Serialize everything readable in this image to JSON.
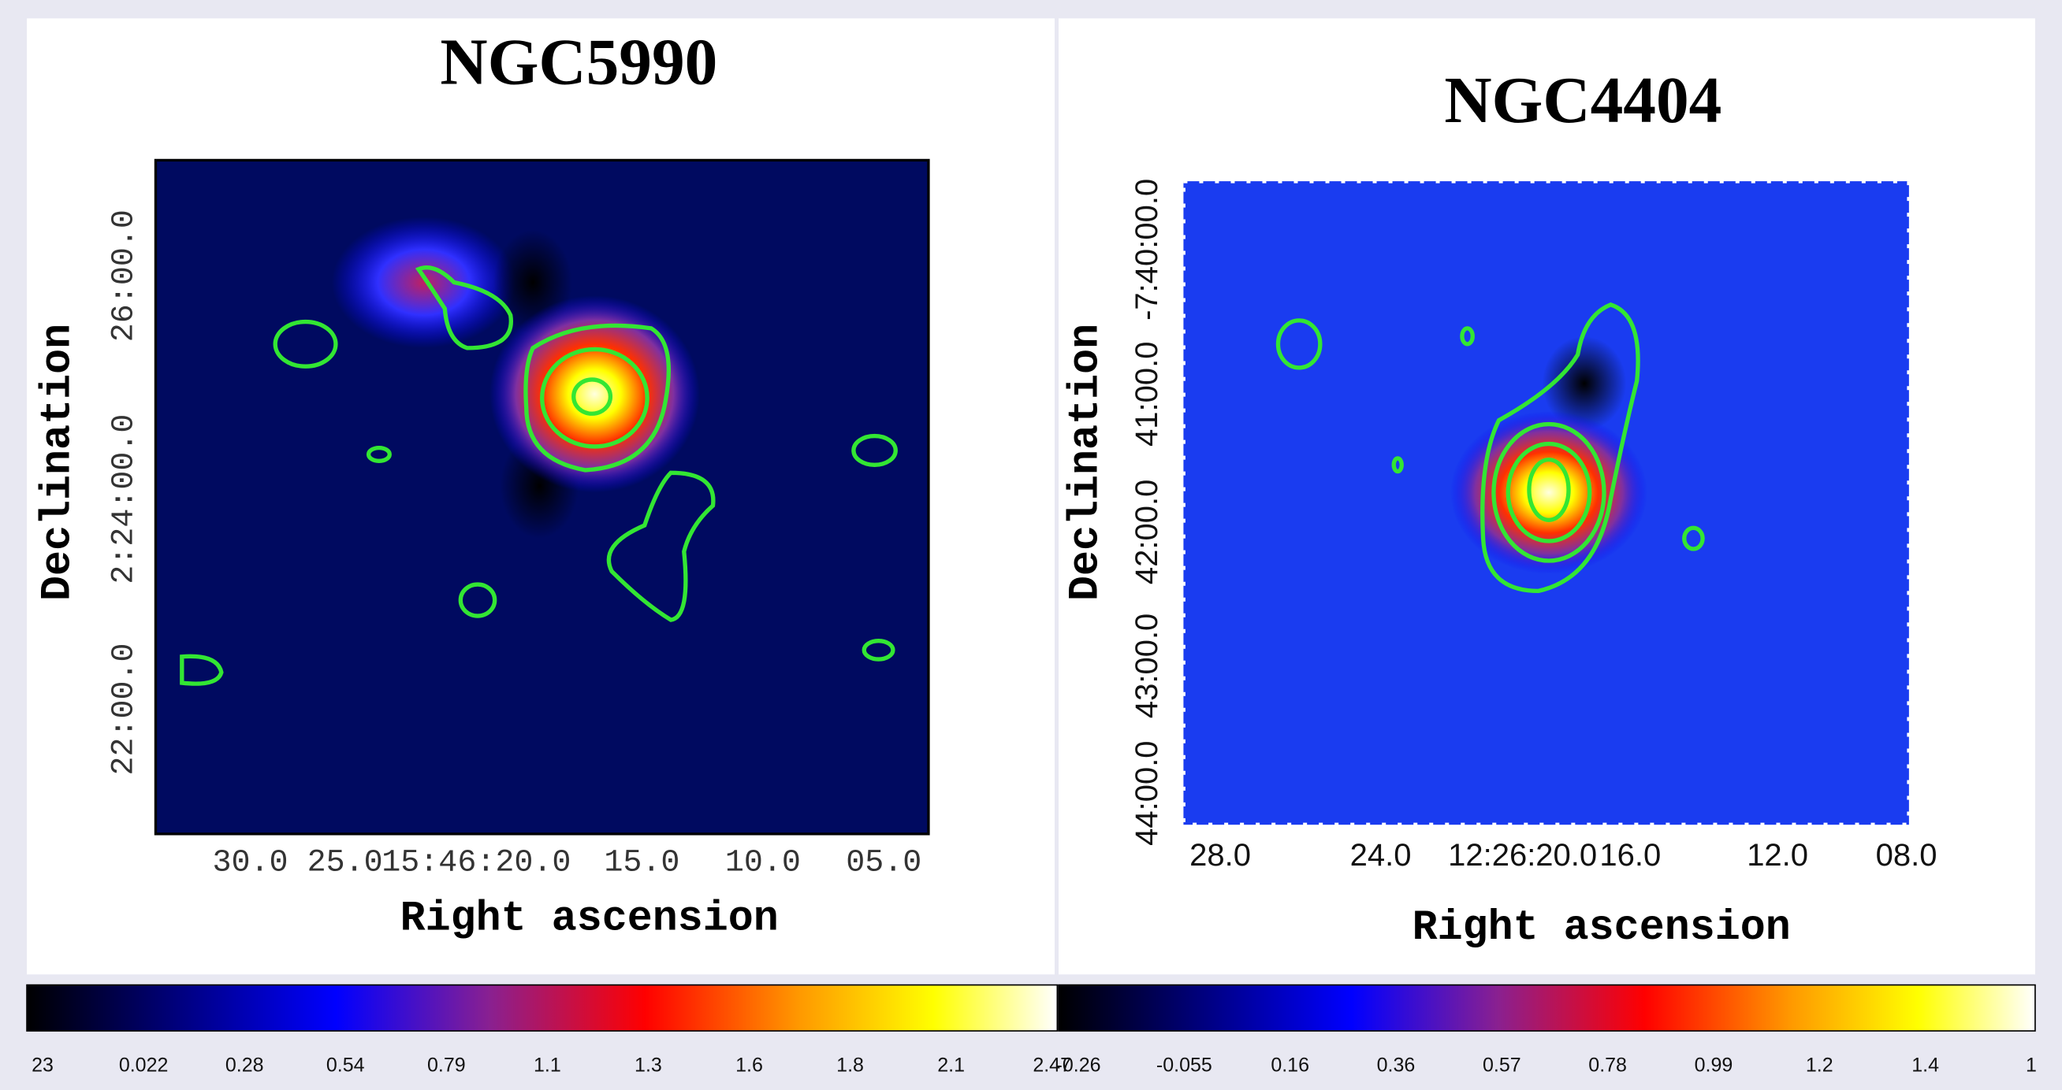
{
  "panels": [
    {
      "title": "NGC5990",
      "x_label": "Right ascension",
      "y_label": "Declination",
      "x_ticks": [
        "30.0",
        "25.0",
        "15:46:20.0",
        "15.0",
        "10.0",
        "05.0"
      ],
      "y_ticks": [
        "22:00.0",
        "2:24:00.0",
        "26:00.0"
      ]
    },
    {
      "title": "NGC4404",
      "x_label": "Right ascension",
      "y_label": "Declination",
      "x_ticks": [
        "28.0",
        "24.0",
        "12:26:20.0",
        "16.0",
        "12.0",
        "08.0"
      ],
      "y_ticks": [
        "44:00.0",
        "43:00.0",
        "42:00.0",
        "41:00.0",
        "-7:40:00.0"
      ]
    }
  ],
  "colorbars": [
    {
      "ticks": [
        "23",
        "0.022",
        "0.28",
        "0.54",
        "0.79",
        "1.1",
        "1.3",
        "1.6",
        "1.8",
        "2.1",
        "2.47"
      ]
    },
    {
      "ticks": [
        "-0.26",
        "-0.055",
        "0.16",
        "0.36",
        "0.57",
        "0.78",
        "0.99",
        "1.2",
        "1.4",
        "1"
      ]
    }
  ]
}
